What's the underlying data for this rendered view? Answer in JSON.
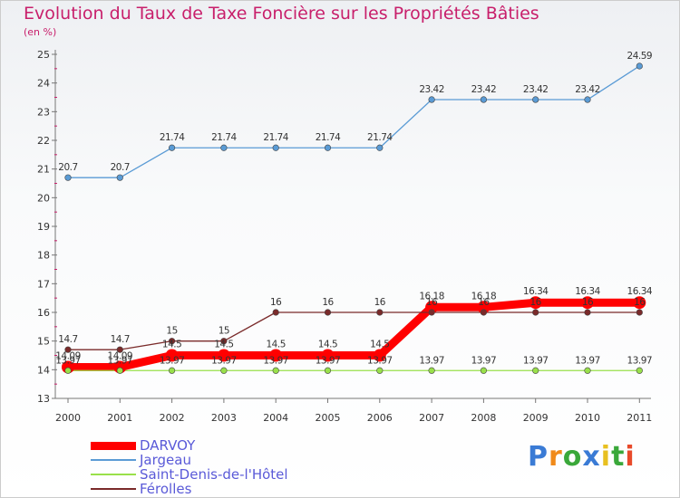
{
  "chart_data": {
    "type": "line",
    "title": "Evolution du Taux de Taxe Foncière sur les Propriétés Bâties",
    "ylabel": "(en %)",
    "xlabel": "",
    "categories": [
      "2000",
      "2001",
      "2002",
      "2003",
      "2004",
      "2005",
      "2006",
      "2007",
      "2008",
      "2009",
      "2010",
      "2011"
    ],
    "ylim": [
      13,
      25
    ],
    "yticks": [
      13,
      14,
      15,
      16,
      17,
      18,
      19,
      20,
      21,
      22,
      23,
      24,
      25
    ],
    "series": [
      {
        "name": "DARVOY",
        "color": "#ff0000",
        "values": [
          14.09,
          14.09,
          14.5,
          14.5,
          14.5,
          14.5,
          14.5,
          16.18,
          16.18,
          16.34,
          16.34,
          16.34
        ],
        "labels": [
          "14.09",
          "14.09",
          "14.5",
          "14.5",
          "14.5",
          "14.5",
          "14.5",
          "16.18",
          "16.18",
          "16.34",
          "16.34",
          "16.34"
        ]
      },
      {
        "name": "Jargeau",
        "color": "#5a9bd5",
        "values": [
          20.7,
          20.7,
          21.74,
          21.74,
          21.74,
          21.74,
          21.74,
          23.42,
          23.42,
          23.42,
          23.42,
          24.59
        ],
        "labels": [
          "20.7",
          "20.7",
          "21.74",
          "21.74",
          "21.74",
          "21.74",
          "21.74",
          "23.42",
          "23.42",
          "23.42",
          "23.42",
          "24.59"
        ]
      },
      {
        "name": "Saint-Denis-de-l'Hôtel",
        "color": "#99e04a",
        "values": [
          13.97,
          13.97,
          13.97,
          13.97,
          13.97,
          13.97,
          13.97,
          13.97,
          13.97,
          13.97,
          13.97,
          13.97
        ],
        "labels": [
          "13.97",
          "13.97",
          "13.97",
          "13.97",
          "13.97",
          "13.97",
          "13.97",
          "13.97",
          "13.97",
          "13.97",
          "13.97",
          "13.97"
        ]
      },
      {
        "name": "Férolles",
        "color": "#7a2a2a",
        "values": [
          14.7,
          14.7,
          15,
          15,
          16,
          16,
          16,
          16,
          16,
          16,
          16,
          16
        ],
        "labels": [
          "14.7",
          "14.7",
          "15",
          "15",
          "16",
          "16",
          "16",
          "16",
          "16",
          "16",
          "16",
          "16"
        ]
      }
    ]
  },
  "legend": {
    "items": [
      {
        "label": "DARVOY",
        "color": "#ff0000"
      },
      {
        "label": "Jargeau",
        "color": "#5a9bd5"
      },
      {
        "label": "Saint-Denis-de-l'Hôtel",
        "color": "#99e04a"
      },
      {
        "label": "Férolles",
        "color": "#7a2a2a"
      }
    ]
  },
  "logo": {
    "text": "Proxiti"
  }
}
